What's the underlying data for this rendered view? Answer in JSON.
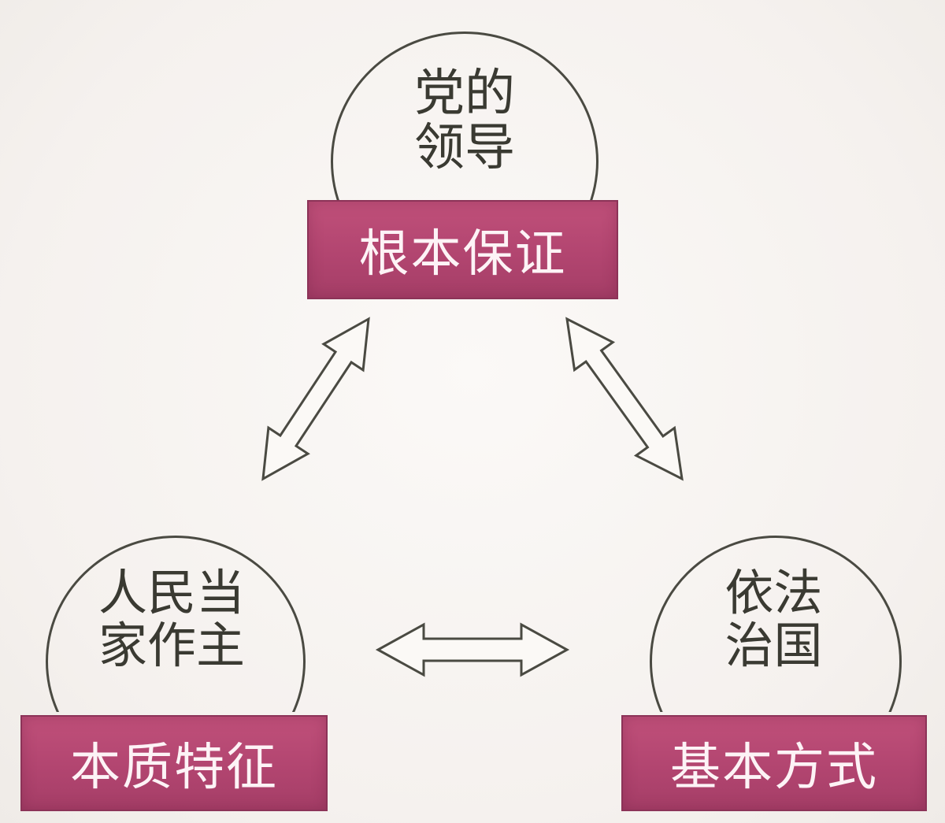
{
  "nodes": {
    "top": {
      "bubble_lines": [
        "党的",
        "领导"
      ],
      "label": "根本保证"
    },
    "left": {
      "bubble_lines": [
        "人民当",
        "家作主"
      ],
      "label": "本质特征"
    },
    "right": {
      "bubble_lines": [
        "依法",
        "治国"
      ],
      "label": "基本方式"
    }
  },
  "colors": {
    "label_fill": "#b24570",
    "label_text": "#fdf3f6",
    "outline": "#4a4a42",
    "background": "#f7f4f1"
  },
  "icons": {
    "connector": "double-headed-arrow-icon"
  }
}
